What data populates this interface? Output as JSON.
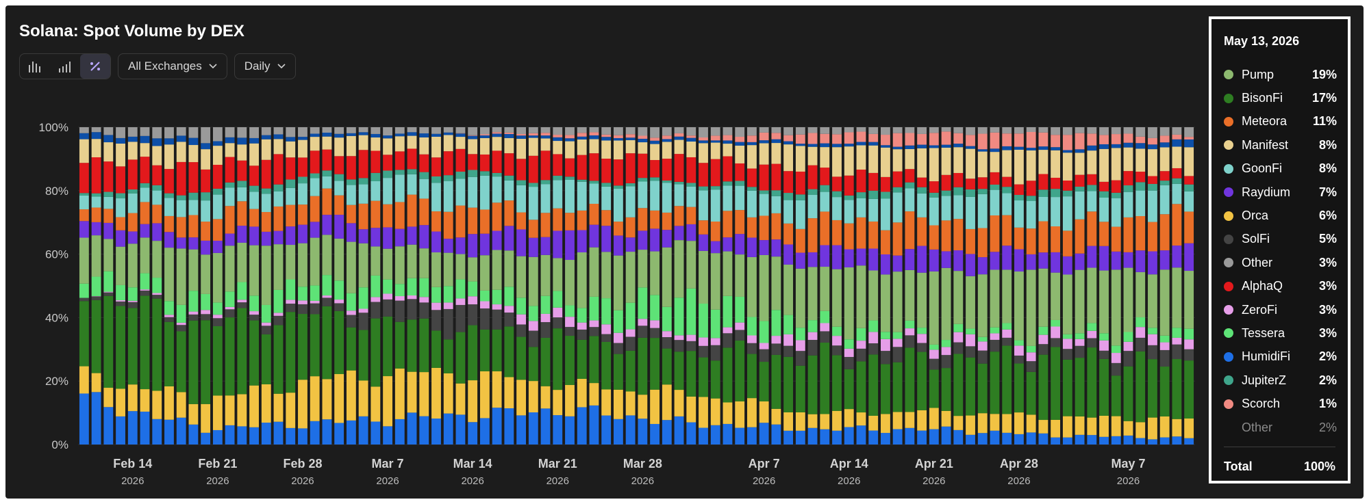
{
  "header": {
    "title": "Solana: Spot Volume by DEX",
    "exchange_filter": "All Exchanges",
    "interval": "Daily"
  },
  "legend": {
    "date": "May 13, 2026",
    "items": [
      {
        "name": "Pump",
        "pct": "19%",
        "color": "#8db96f"
      },
      {
        "name": "BisonFi",
        "pct": "17%",
        "color": "#2e7d22"
      },
      {
        "name": "Meteora",
        "pct": "11%",
        "color": "#ea6f28"
      },
      {
        "name": "Manifest",
        "pct": "8%",
        "color": "#e8d08f"
      },
      {
        "name": "GoonFi",
        "pct": "8%",
        "color": "#7fd2cb"
      },
      {
        "name": "Raydium",
        "pct": "7%",
        "color": "#7035de"
      },
      {
        "name": "Orca",
        "pct": "6%",
        "color": "#f2c343"
      },
      {
        "name": "SolFi",
        "pct": "5%",
        "color": "#444444"
      },
      {
        "name": "Other",
        "pct": "3%",
        "color": "#9a9a9a"
      },
      {
        "name": "AlphaQ",
        "pct": "3%",
        "color": "#e3191c"
      },
      {
        "name": "ZeroFi",
        "pct": "3%",
        "color": "#e69ee8"
      },
      {
        "name": "Tessera",
        "pct": "3%",
        "color": "#5ee377"
      },
      {
        "name": "HumidiFi",
        "pct": "2%",
        "color": "#1e6fe6"
      },
      {
        "name": "JupiterZ",
        "pct": "2%",
        "color": "#3fa58b"
      },
      {
        "name": "Scorch",
        "pct": "1%",
        "color": "#f08a82"
      },
      {
        "name": "Other",
        "pct": "2%",
        "color": ""
      }
    ],
    "total_label": "Total",
    "total_pct": "100%"
  },
  "chart_data": {
    "type": "bar",
    "stacked": true,
    "ylim": [
      0,
      100
    ],
    "yticks": [
      "0%",
      "20%",
      "40%",
      "60%",
      "80%",
      "100%"
    ],
    "xticks": [
      {
        "label": "Feb 14",
        "year": "2026",
        "index": 4
      },
      {
        "label": "Feb 21",
        "year": "2026",
        "index": 11
      },
      {
        "label": "Feb 28",
        "year": "2026",
        "index": 18
      },
      {
        "label": "Mar 7",
        "year": "2026",
        "index": 25
      },
      {
        "label": "Mar 14",
        "year": "2026",
        "index": 32
      },
      {
        "label": "Mar 21",
        "year": "2026",
        "index": 39
      },
      {
        "label": "Mar 28",
        "year": "2026",
        "index": 46
      },
      {
        "label": "Apr 7",
        "year": "2026",
        "index": 56
      },
      {
        "label": "Apr 14",
        "year": "2026",
        "index": 63
      },
      {
        "label": "Apr 21",
        "year": "2026",
        "index": 70
      },
      {
        "label": "Apr 28",
        "year": "2026",
        "index": 77
      },
      {
        "label": "May 7",
        "year": "2026",
        "index": 86
      }
    ],
    "bar_count": 92,
    "grid": true,
    "legend_position": "right",
    "series_order": [
      "HumidiFi",
      "Orca",
      "BisonFi",
      "SolFi",
      "ZeroFi",
      "Tessera",
      "Pump",
      "Raydium",
      "Meteora",
      "GoonFi",
      "JupiterZ",
      "AlphaQ",
      "Manifest",
      "Scorch",
      "Other"
    ],
    "colors": {
      "HumidiFi": "#1e6fe6",
      "Orca": "#f2c343",
      "BisonFi": "#2e7d22",
      "SolFi": "#444444",
      "ZeroFi": "#e69ee8",
      "Tessera": "#5ee377",
      "Pump": "#8db96f",
      "Raydium": "#7035de",
      "Meteora": "#ea6f28",
      "GoonFi": "#7fd2cb",
      "JupiterZ": "#3fa58b",
      "AlphaQ": "#e3191c",
      "Manifest": "#e8d08f",
      "Scorch": "#f08a82",
      "Other": "#9a9a9a",
      "Extra": "#0d4fa8"
    },
    "anchors": [
      {
        "i": 0,
        "HumidiFi": 14,
        "Orca": 7,
        "BisonFi": 26,
        "SolFi": 1,
        "ZeroFi": 0,
        "Tessera": 5,
        "Pump": 11,
        "Raydium": 5,
        "Meteora": 4,
        "GoonFi": 4,
        "JupiterZ": 1,
        "AlphaQ": 9,
        "Manifest": 6,
        "Scorch": 0,
        "Extra": 2,
        "Other": 2
      },
      {
        "i": 10,
        "HumidiFi": 5,
        "Orca": 9,
        "BisonFi": 24,
        "SolFi": 2,
        "ZeroFi": 1,
        "Tessera": 5,
        "Pump": 15,
        "Raydium": 4,
        "Meteora": 7,
        "GoonFi": 6,
        "JupiterZ": 2,
        "AlphaQ": 8,
        "Manifest": 6,
        "Scorch": 0,
        "Extra": 2,
        "Other": 4
      },
      {
        "i": 20,
        "HumidiFi": 7,
        "Orca": 14,
        "BisonFi": 20,
        "SolFi": 3,
        "ZeroFi": 1,
        "Tessera": 6,
        "Pump": 14,
        "Raydium": 6,
        "Meteora": 7,
        "GoonFi": 5,
        "JupiterZ": 2,
        "AlphaQ": 7,
        "Manifest": 5,
        "Scorch": 0,
        "Extra": 1,
        "Other": 2
      },
      {
        "i": 30,
        "HumidiFi": 9,
        "Orca": 14,
        "BisonFi": 14,
        "SolFi": 8,
        "ZeroFi": 2,
        "Tessera": 5,
        "Pump": 9,
        "Raydium": 6,
        "Meteora": 9,
        "GoonFi": 9,
        "JupiterZ": 2,
        "AlphaQ": 6,
        "Manifest": 5,
        "Scorch": 0,
        "Extra": 1,
        "Other": 2
      },
      {
        "i": 40,
        "HumidiFi": 11,
        "Orca": 8,
        "BisonFi": 15,
        "SolFi": 3,
        "ZeroFi": 3,
        "Tessera": 5,
        "Pump": 15,
        "Raydium": 8,
        "Meteora": 6,
        "GoonFi": 9,
        "JupiterZ": 1,
        "AlphaQ": 8,
        "Manifest": 5,
        "Scorch": 1,
        "Extra": 1,
        "Other": 2
      },
      {
        "i": 50,
        "HumidiFi": 7,
        "Orca": 10,
        "BisonFi": 14,
        "SolFi": 4,
        "ZeroFi": 2,
        "Tessera": 12,
        "Pump": 17,
        "Raydium": 5,
        "Meteora": 6,
        "GoonFi": 9,
        "JupiterZ": 1,
        "AlphaQ": 8,
        "Manifest": 5,
        "Scorch": 1,
        "Extra": 1,
        "Other": 3
      },
      {
        "i": 60,
        "HumidiFi": 5,
        "Orca": 5,
        "BisonFi": 18,
        "SolFi": 4,
        "ZeroFi": 3,
        "Tessera": 4,
        "Pump": 18,
        "Raydium": 6,
        "Meteora": 9,
        "GoonFi": 7,
        "JupiterZ": 2,
        "AlphaQ": 7,
        "Manifest": 8,
        "Scorch": 3,
        "Extra": 1,
        "Other": 2
      },
      {
        "i": 70,
        "HumidiFi": 5,
        "Orca": 6,
        "BisonFi": 17,
        "SolFi": 4,
        "ZeroFi": 3,
        "Tessera": 2,
        "Pump": 20,
        "Raydium": 7,
        "Meteora": 10,
        "GoonFi": 9,
        "JupiterZ": 2,
        "AlphaQ": 4,
        "Manifest": 9,
        "Scorch": 4,
        "Extra": 1,
        "Other": 2
      },
      {
        "i": 80,
        "HumidiFi": 3,
        "Orca": 6,
        "BisonFi": 20,
        "SolFi": 3,
        "ZeroFi": 3,
        "Tessera": 2,
        "Pump": 20,
        "Raydium": 6,
        "Meteora": 9,
        "GoonFi": 9,
        "JupiterZ": 2,
        "AlphaQ": 4,
        "Manifest": 9,
        "Scorch": 5,
        "Extra": 1,
        "Other": 2
      },
      {
        "i": 91,
        "HumidiFi": 2,
        "Orca": 6,
        "BisonFi": 17,
        "SolFi": 5,
        "ZeroFi": 3,
        "Tessera": 3,
        "Pump": 19,
        "Raydium": 7,
        "Meteora": 11,
        "GoonFi": 8,
        "JupiterZ": 2,
        "AlphaQ": 3,
        "Manifest": 8,
        "Scorch": 1,
        "Extra": 2,
        "Other": 3
      }
    ]
  }
}
